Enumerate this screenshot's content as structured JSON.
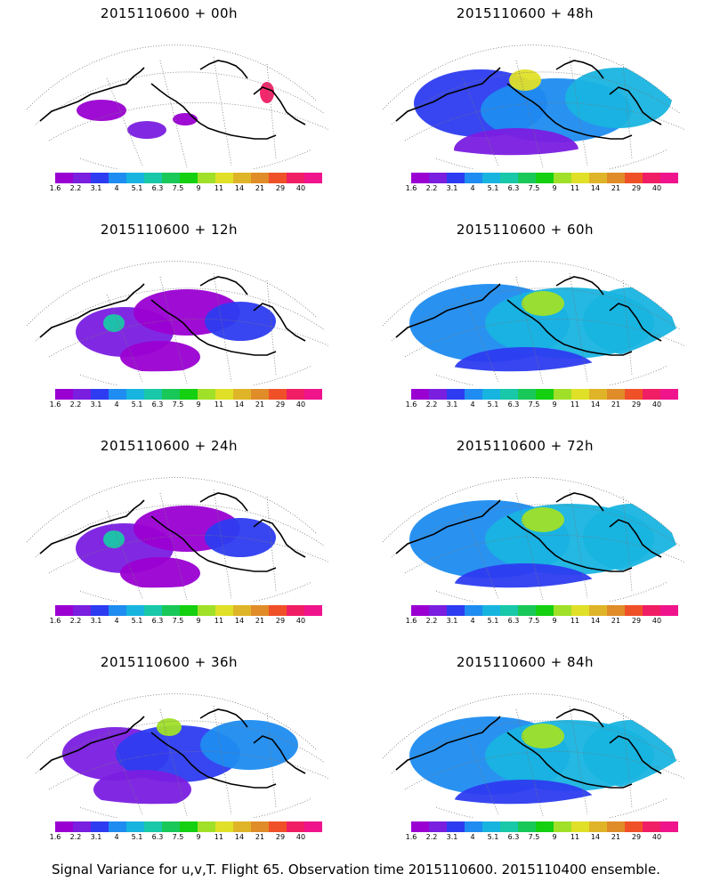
{
  "panels": [
    {
      "title": "2015110600 + 00h",
      "level": 0
    },
    {
      "title": "2015110600 + 48h",
      "level": 3
    },
    {
      "title": "2015110600 + 12h",
      "level": 1
    },
    {
      "title": "2015110600 + 60h",
      "level": 4
    },
    {
      "title": "2015110600 + 24h",
      "level": 1
    },
    {
      "title": "2015110600 + 72h",
      "level": 5
    },
    {
      "title": "2015110600 + 36h",
      "level": 2
    },
    {
      "title": "2015110600 + 84h",
      "level": 5
    }
  ],
  "colorbar": {
    "colors": [
      "#9a00d2",
      "#7a1ee0",
      "#2d3cf0",
      "#1e8cf0",
      "#18b4e0",
      "#18c8a8",
      "#18c858",
      "#14d010",
      "#a0e028",
      "#e0e028",
      "#e0b428",
      "#e08c28",
      "#f05028",
      "#f01e64",
      "#f0148c"
    ],
    "labels": [
      "1.6",
      "2.2",
      "3.1",
      "4",
      "5.1",
      "6.3",
      "7.5",
      "9",
      "11",
      "14",
      "21",
      "29",
      "40"
    ]
  },
  "caption": "Signal Variance for u,v,T. Flight 65. Observation time 2015110600. 2015110400 ensemble."
}
